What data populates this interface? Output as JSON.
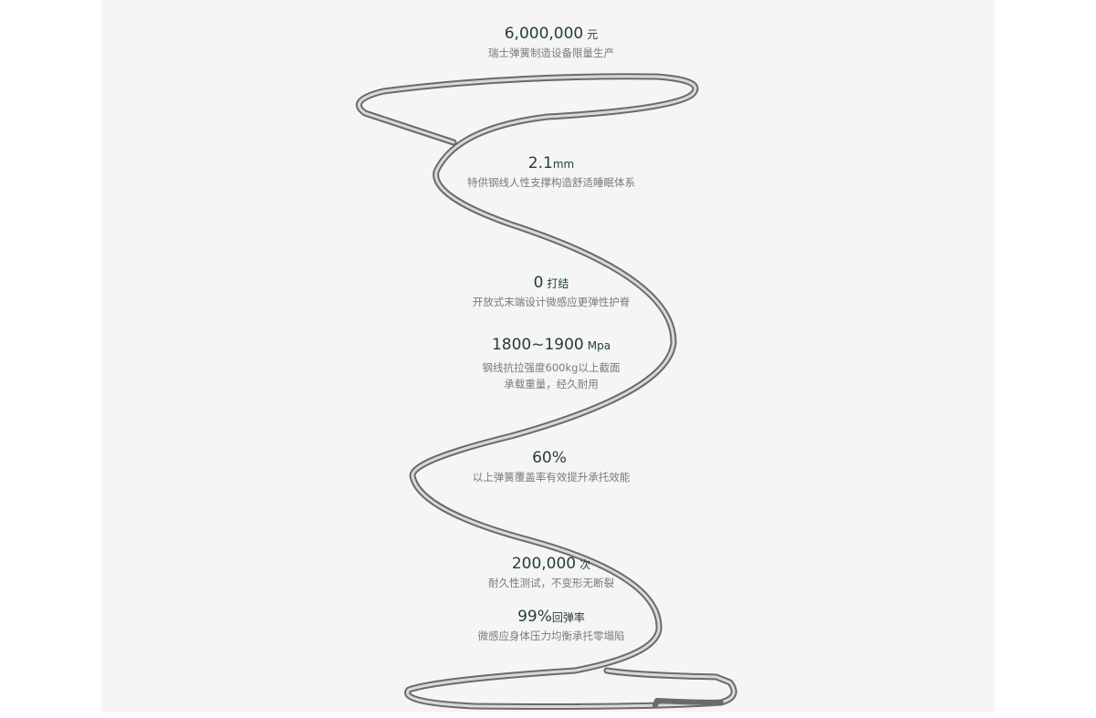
{
  "specs": [
    {
      "value": "6,000,000",
      "unit": "元",
      "desc": [
        "瑞士弹簧制造设备限量生产"
      ]
    },
    {
      "value": "2.1",
      "unit": "mm",
      "desc": [
        "特供钢线人性支撑构造舒适睡眠体系"
      ]
    },
    {
      "value": "0",
      "unit": "打结",
      "desc": [
        "开放式末端设计微感应更弹性护脊"
      ]
    },
    {
      "value": "1800~1900",
      "unit": "Mpa",
      "desc": [
        "钢线抗拉强度600kg以上截面",
        "承载重量，经久耐用"
      ]
    },
    {
      "value": "60%",
      "unit": "",
      "desc": [
        "以上弹簧覆盖率有效提升承托效能"
      ]
    },
    {
      "value": "200,000",
      "unit": "次",
      "desc": [
        "耐久性测试，不变形无断裂"
      ]
    },
    {
      "value": "99%",
      "unit": "回弹率",
      "desc": [
        "微感应身体压力均衡承托零塌陷"
      ]
    }
  ]
}
